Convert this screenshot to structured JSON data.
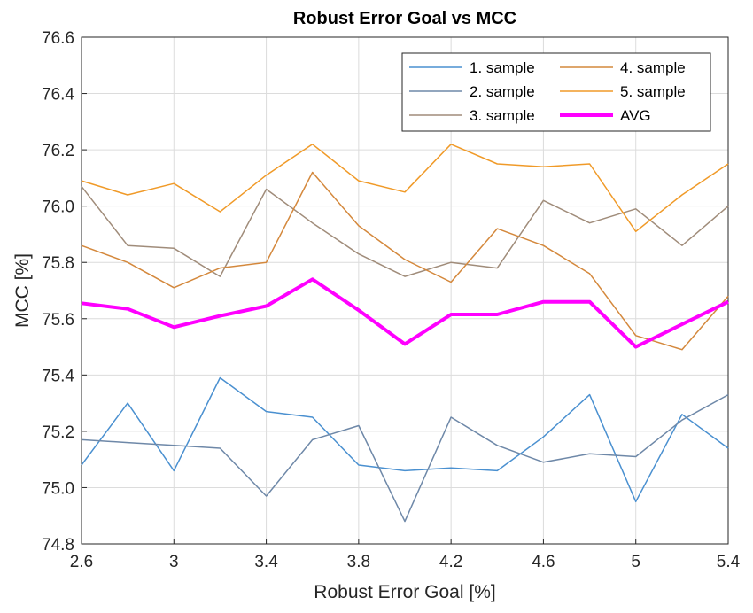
{
  "chart_data": {
    "type": "line",
    "title": "Robust Error Goal vs MCC",
    "xlabel": "Robust Error Goal [%]",
    "ylabel": "MCC [%]",
    "xlim": [
      2.6,
      5.4
    ],
    "ylim": [
      74.8,
      76.6
    ],
    "xticks": [
      2.6,
      3,
      3.4,
      3.8,
      4.2,
      4.6,
      5,
      5.4
    ],
    "xtick_labels": [
      "2.6",
      "3",
      "3.4",
      "3.8",
      "4.2",
      "4.6",
      "5",
      "5.4"
    ],
    "yticks": [
      74.8,
      75.0,
      75.2,
      75.4,
      75.6,
      75.8,
      76.0,
      76.2,
      76.4,
      76.6
    ],
    "ytick_labels": [
      "74.8",
      "75.0",
      "75.2",
      "75.4",
      "75.6",
      "75.8",
      "76.0",
      "76.2",
      "76.4",
      "76.6"
    ],
    "grid": true,
    "legend_position": "top-right",
    "x": [
      2.6,
      2.8,
      3.0,
      3.2,
      3.4,
      3.6,
      3.8,
      4.0,
      4.2,
      4.4,
      4.6,
      4.8,
      5.0,
      5.2,
      5.4
    ],
    "series": [
      {
        "name": "1. sample",
        "color": "#4a90d0",
        "width": 1.5,
        "values": [
          75.08,
          75.3,
          75.06,
          75.39,
          75.27,
          75.25,
          75.08,
          75.06,
          75.07,
          75.06,
          75.18,
          75.33,
          74.95,
          75.26,
          75.14
        ]
      },
      {
        "name": "2. sample",
        "color": "#6e88a8",
        "width": 1.5,
        "values": [
          75.17,
          75.16,
          75.15,
          75.14,
          74.97,
          75.17,
          75.22,
          74.88,
          75.25,
          75.15,
          75.09,
          75.12,
          75.11,
          75.24,
          75.33
        ]
      },
      {
        "name": "3. sample",
        "color": "#a08c7a",
        "width": 1.5,
        "values": [
          76.07,
          75.86,
          75.85,
          75.75,
          76.06,
          75.94,
          75.83,
          75.75,
          75.8,
          75.78,
          76.02,
          75.94,
          75.99,
          75.86,
          76.0
        ]
      },
      {
        "name": "4. sample",
        "color": "#d4883c",
        "width": 1.5,
        "values": [
          75.86,
          75.8,
          75.71,
          75.78,
          75.8,
          76.12,
          75.93,
          75.81,
          75.73,
          75.92,
          75.86,
          75.76,
          75.54,
          75.49,
          75.68
        ]
      },
      {
        "name": "5. sample",
        "color": "#f09a28",
        "width": 1.5,
        "values": [
          76.09,
          76.04,
          76.08,
          75.98,
          76.11,
          76.22,
          76.09,
          76.05,
          76.22,
          76.15,
          76.14,
          76.15,
          75.91,
          76.04,
          76.15
        ]
      },
      {
        "name": "AVG",
        "color": "#ff00ff",
        "width": 4,
        "values": [
          75.655,
          75.635,
          75.57,
          75.61,
          75.645,
          75.74,
          75.63,
          75.51,
          75.615,
          75.615,
          75.66,
          75.66,
          75.5,
          75.58,
          75.66
        ]
      }
    ]
  }
}
